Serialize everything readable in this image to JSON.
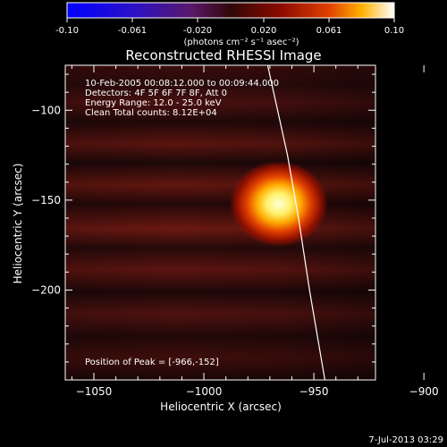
{
  "colorbar": {
    "ticks": [
      "-0.10",
      "-0.061",
      "-0.020",
      "0.020",
      "0.061",
      "0.10"
    ],
    "unit_label": "(photons cm⁻² s⁻¹ asec⁻²)"
  },
  "timestamp": "7-Jul-2013 03:29",
  "info": {
    "line1": "10-Feb-2005 00:08:12.000 to 00:09:44.000",
    "line2": "Detectors: 4F 5F 6F 7F 8F, Att 0",
    "line3": "Energy Range: 12.0 - 25.0 keV",
    "line4": "Clean     Total counts: 8.12E+04",
    "peak": "Position of Peak = [-966,-152]"
  },
  "chart_data": {
    "type": "heatmap",
    "title": "Reconstructed RHESSI Image",
    "xlabel": "Heliocentric X (arcsec)",
    "ylabel": "Heliocentric Y (arcsec)",
    "xlim": [
      -1063,
      -922
    ],
    "ylim": [
      -250,
      -75
    ],
    "x_ticks": [
      -1050,
      -1000,
      -950,
      -900
    ],
    "y_ticks": [
      -100,
      -150,
      -200
    ],
    "x_tick_labels": [
      "−1050",
      "−1000",
      "−950",
      "−900"
    ],
    "y_tick_labels": [
      "−100",
      "−150",
      "−200"
    ],
    "colorbar_range": [
      -0.1,
      0.1
    ],
    "peak": {
      "x": -966,
      "y": -152
    },
    "limb_curve": [
      [
        -971,
        -75
      ],
      [
        -962,
        -125
      ],
      [
        -957,
        -160
      ],
      [
        -952,
        -200
      ],
      [
        -945,
        -250
      ]
    ]
  },
  "colors": {
    "background": "#000000",
    "text": "#ffffff"
  }
}
